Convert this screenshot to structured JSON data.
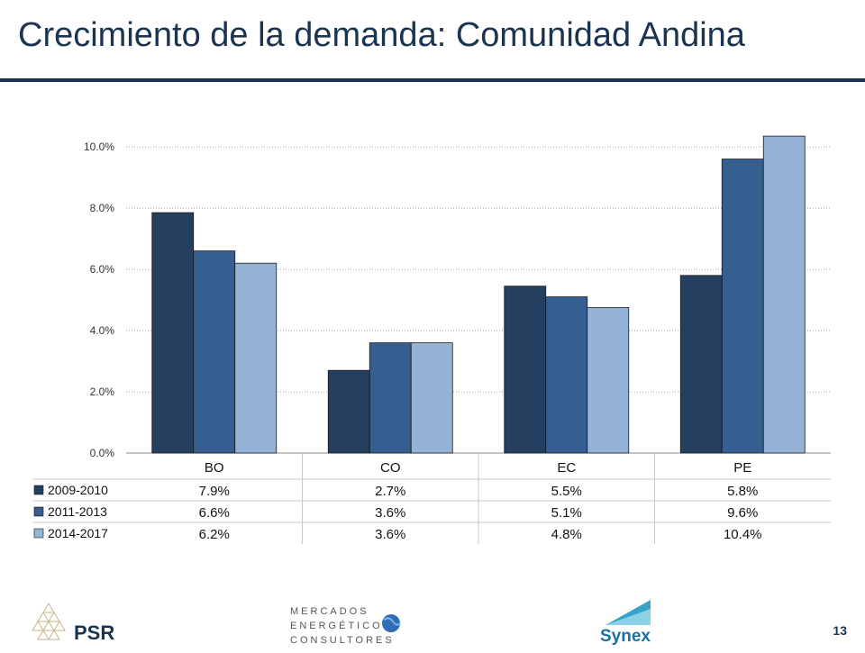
{
  "slide": {
    "title": "Crecimiento de la demanda: Comunidad Andina",
    "page_number": "13"
  },
  "logos": {
    "psr": "PSR",
    "mercados": [
      "MERCADOS",
      "ENERGÉTICOS",
      "CONSULTORES"
    ],
    "synex": "Synex"
  },
  "colors": {
    "title": "#1b3550",
    "series": [
      "#243f60",
      "#365f91",
      "#95b3d7"
    ],
    "grid": "#a0a0a0"
  },
  "chart_data": {
    "type": "bar",
    "categories": [
      "BO",
      "CO",
      "EC",
      "PE"
    ],
    "series": [
      {
        "name": "2009-2010",
        "values": [
          7.85,
          2.7,
          5.45,
          5.8
        ],
        "labels": [
          "7.9%",
          "2.7%",
          "5.5%",
          "5.8%"
        ]
      },
      {
        "name": "2011-2013",
        "values": [
          6.6,
          3.6,
          5.1,
          9.6
        ],
        "labels": [
          "6.6%",
          "3.6%",
          "5.1%",
          "9.6%"
        ]
      },
      {
        "name": "2014-2017",
        "values": [
          6.2,
          3.6,
          4.75,
          10.35
        ],
        "labels": [
          "6.2%",
          "3.6%",
          "4.8%",
          "10.4%"
        ]
      }
    ],
    "y_ticks": [
      "0.0%",
      "2.0%",
      "4.0%",
      "6.0%",
      "8.0%",
      "10.0%"
    ],
    "ylim": [
      0,
      10
    ],
    "grid": true,
    "legend": "data-table"
  }
}
